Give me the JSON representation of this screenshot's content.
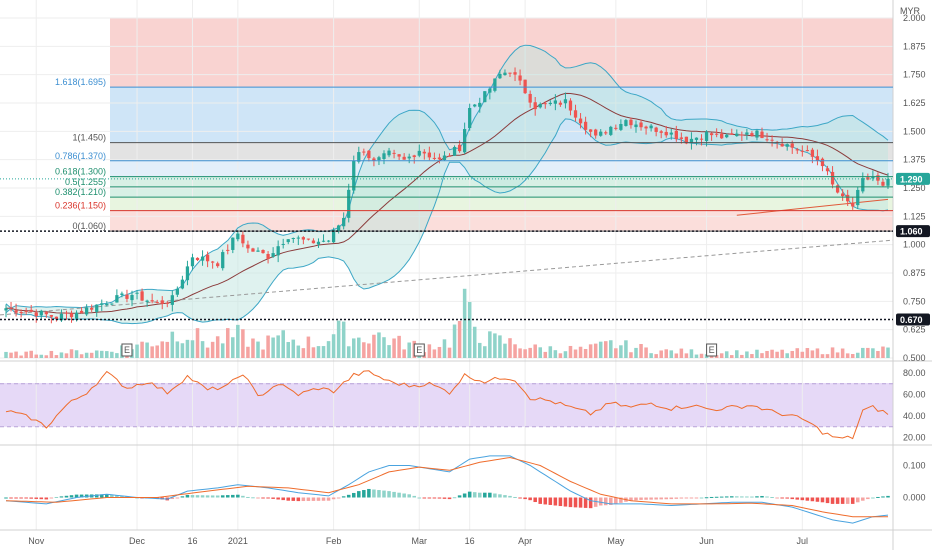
{
  "currency": "MYR",
  "colors": {
    "up": "#26a69a",
    "down": "#ef5350",
    "up_vol": "#8fd3c9",
    "down_vol": "#f5a3a1",
    "bb_line": "#3da7c6",
    "bb_fill": "#bfe6df",
    "ma": "#8b3c3c",
    "trend_red": "#e05a3a",
    "rsi": "#ef6c2c",
    "rsi_band": "#e6d9f7",
    "macd": "#4aa3df",
    "signal": "#ef6c2c",
    "hist_up": "#26a69a",
    "hist_down": "#ef5350",
    "grid": "#eeeeee",
    "last_price": "#26a69a",
    "level_tag": "#131722"
  },
  "chart_data": {
    "type": "candlestick",
    "price_axis": {
      "ylim": [
        0.5,
        2.0
      ],
      "ticks": [
        "2.000",
        "1.875",
        "1.750",
        "1.625",
        "1.500",
        "1.375",
        "1.250",
        "1.125",
        "1.000",
        "0.875",
        "0.750",
        "0.625",
        "0.500"
      ],
      "tick_values": [
        2.0,
        1.875,
        1.75,
        1.625,
        1.5,
        1.375,
        1.25,
        1.125,
        1.0,
        0.875,
        0.75,
        0.625,
        0.5
      ]
    },
    "time_axis": {
      "labels": [
        "Nov",
        "Dec",
        "16",
        "2021",
        "Feb",
        "Mar",
        "16",
        "Apr",
        "May",
        "Jun",
        "Jul"
      ],
      "label_bar_index": [
        6,
        26,
        37,
        46,
        65,
        82,
        92,
        103,
        121,
        139,
        158
      ]
    },
    "last_price": {
      "label": "1.290",
      "value": 1.29
    },
    "support_level": {
      "label": "1.060",
      "value": 1.06
    },
    "support_level_2": {
      "label": "0.670",
      "value": 0.67
    },
    "fibonacci": [
      {
        "label": "1.618(1.695)",
        "value": 1.695,
        "color": "#3d8fd1"
      },
      {
        "label": "1(1.450)",
        "value": 1.45,
        "color": "#555555"
      },
      {
        "label": "0.786(1.370)",
        "value": 1.37,
        "color": "#3d8fd1"
      },
      {
        "label": "0.618(1.300)",
        "value": 1.3,
        "color": "#1e8f6e"
      },
      {
        "label": "0.5(1.255)",
        "value": 1.255,
        "color": "#1e8f6e"
      },
      {
        "label": "0.382(1.210)",
        "value": 1.21,
        "color": "#1e8f6e"
      },
      {
        "label": "0.236(1.150)",
        "value": 1.15,
        "color": "#d9342b"
      },
      {
        "label": "0(1.060)",
        "value": 1.06,
        "color": "#555555"
      }
    ],
    "fib_zones": [
      {
        "from": 1.695,
        "to": 2.0,
        "color": "#f9d3d1"
      },
      {
        "from": 1.45,
        "to": 1.695,
        "color": "#cfe5f7"
      },
      {
        "from": 1.37,
        "to": 1.45,
        "color": "#e3e3e3"
      },
      {
        "from": 1.3,
        "to": 1.37,
        "color": "#e3effa"
      },
      {
        "from": 1.21,
        "to": 1.3,
        "color": "#d8f0e5"
      },
      {
        "from": 1.15,
        "to": 1.21,
        "color": "#e8f5e0"
      },
      {
        "from": 1.06,
        "to": 1.15,
        "color": "#fbdedb"
      }
    ],
    "close_anchors": [
      [
        0,
        0.72
      ],
      [
        6,
        0.7
      ],
      [
        10,
        0.68
      ],
      [
        14,
        0.7
      ],
      [
        20,
        0.75
      ],
      [
        25,
        0.78
      ],
      [
        30,
        0.74
      ],
      [
        33,
        0.76
      ],
      [
        37,
        0.95
      ],
      [
        42,
        0.92
      ],
      [
        46,
        1.05
      ],
      [
        48,
        0.98
      ],
      [
        52,
        0.95
      ],
      [
        56,
        1.04
      ],
      [
        60,
        1.01
      ],
      [
        64,
        1.02
      ],
      [
        67,
        1.12
      ],
      [
        69,
        1.38
      ],
      [
        71,
        1.42
      ],
      [
        73,
        1.36
      ],
      [
        76,
        1.4
      ],
      [
        79,
        1.37
      ],
      [
        82,
        1.42
      ],
      [
        86,
        1.37
      ],
      [
        90,
        1.43
      ],
      [
        92,
        1.6
      ],
      [
        95,
        1.66
      ],
      [
        98,
        1.75
      ],
      [
        100,
        1.77
      ],
      [
        102,
        1.71
      ],
      [
        105,
        1.61
      ],
      [
        108,
        1.62
      ],
      [
        111,
        1.63
      ],
      [
        114,
        1.55
      ],
      [
        117,
        1.47
      ],
      [
        120,
        1.52
      ],
      [
        123,
        1.55
      ],
      [
        127,
        1.52
      ],
      [
        131,
        1.5
      ],
      [
        135,
        1.46
      ],
      [
        139,
        1.49
      ],
      [
        143,
        1.47
      ],
      [
        147,
        1.5
      ],
      [
        151,
        1.48
      ],
      [
        155,
        1.44
      ],
      [
        159,
        1.4
      ],
      [
        162,
        1.36
      ],
      [
        164,
        1.26
      ],
      [
        166,
        1.2
      ],
      [
        168,
        1.17
      ],
      [
        170,
        1.28
      ],
      [
        172,
        1.3
      ],
      [
        174,
        1.25
      ],
      [
        175,
        1.29
      ]
    ],
    "volume_anchors": [
      [
        0,
        0.15
      ],
      [
        20,
        0.25
      ],
      [
        30,
        0.6
      ],
      [
        35,
        1.0
      ],
      [
        40,
        0.55
      ],
      [
        46,
        0.8
      ],
      [
        50,
        0.5
      ],
      [
        55,
        0.7
      ],
      [
        62,
        0.5
      ],
      [
        66,
        0.95
      ],
      [
        70,
        0.7
      ],
      [
        73,
        0.85
      ],
      [
        78,
        0.55
      ],
      [
        83,
        0.4
      ],
      [
        88,
        0.6
      ],
      [
        91,
        1.7
      ],
      [
        95,
        0.7
      ],
      [
        100,
        0.55
      ],
      [
        105,
        0.35
      ],
      [
        115,
        0.3
      ],
      [
        120,
        0.5
      ],
      [
        130,
        0.25
      ],
      [
        140,
        0.2
      ],
      [
        150,
        0.2
      ],
      [
        160,
        0.25
      ],
      [
        175,
        0.3
      ]
    ],
    "rsi": {
      "ticks": [
        "80.00",
        "60.00",
        "40.00",
        "20.00"
      ],
      "tick_values": [
        80,
        60,
        40,
        20
      ],
      "band": [
        30,
        70
      ],
      "anchors": [
        [
          0,
          45
        ],
        [
          5,
          38
        ],
        [
          8,
          30
        ],
        [
          12,
          50
        ],
        [
          16,
          62
        ],
        [
          20,
          80
        ],
        [
          24,
          66
        ],
        [
          28,
          72
        ],
        [
          32,
          62
        ],
        [
          36,
          77
        ],
        [
          40,
          64
        ],
        [
          44,
          68
        ],
        [
          47,
          80
        ],
        [
          50,
          58
        ],
        [
          54,
          70
        ],
        [
          58,
          60
        ],
        [
          62,
          66
        ],
        [
          65,
          63
        ],
        [
          69,
          78
        ],
        [
          72,
          81
        ],
        [
          76,
          72
        ],
        [
          80,
          68
        ],
        [
          84,
          70
        ],
        [
          88,
          62
        ],
        [
          91,
          78
        ],
        [
          95,
          72
        ],
        [
          99,
          76
        ],
        [
          101,
          74
        ],
        [
          104,
          57
        ],
        [
          108,
          54
        ],
        [
          112,
          48
        ],
        [
          116,
          42
        ],
        [
          120,
          52
        ],
        [
          124,
          48
        ],
        [
          128,
          52
        ],
        [
          132,
          47
        ],
        [
          136,
          50
        ],
        [
          140,
          46
        ],
        [
          144,
          48
        ],
        [
          148,
          50
        ],
        [
          152,
          44
        ],
        [
          156,
          40
        ],
        [
          159,
          35
        ],
        [
          162,
          25
        ],
        [
          165,
          19
        ],
        [
          168,
          20
        ],
        [
          170,
          45
        ],
        [
          172,
          48
        ],
        [
          174,
          44
        ],
        [
          175,
          42
        ]
      ]
    },
    "macd": {
      "ticks": [
        "0.100",
        "0.000"
      ],
      "tick_values": [
        0.1,
        0.0
      ],
      "ylim": [
        -0.09,
        0.16
      ],
      "macd_anchors": [
        [
          0,
          -0.01
        ],
        [
          8,
          -0.02
        ],
        [
          14,
          0.0
        ],
        [
          20,
          0.01
        ],
        [
          26,
          0.0
        ],
        [
          32,
          -0.005
        ],
        [
          36,
          0.02
        ],
        [
          42,
          0.03
        ],
        [
          46,
          0.04
        ],
        [
          52,
          0.03
        ],
        [
          58,
          0.015
        ],
        [
          64,
          0.005
        ],
        [
          68,
          0.04
        ],
        [
          72,
          0.08
        ],
        [
          76,
          0.1
        ],
        [
          80,
          0.1
        ],
        [
          84,
          0.09
        ],
        [
          88,
          0.08
        ],
        [
          92,
          0.12
        ],
        [
          96,
          0.13
        ],
        [
          100,
          0.13
        ],
        [
          104,
          0.1
        ],
        [
          108,
          0.06
        ],
        [
          112,
          0.02
        ],
        [
          116,
          -0.01
        ],
        [
          120,
          -0.02
        ],
        [
          126,
          -0.02
        ],
        [
          132,
          -0.025
        ],
        [
          138,
          -0.02
        ],
        [
          144,
          -0.015
        ],
        [
          150,
          -0.015
        ],
        [
          156,
          -0.03
        ],
        [
          160,
          -0.05
        ],
        [
          164,
          -0.07
        ],
        [
          168,
          -0.08
        ],
        [
          172,
          -0.06
        ],
        [
          175,
          -0.055
        ]
      ],
      "signal_anchors": [
        [
          0,
          -0.01
        ],
        [
          10,
          -0.015
        ],
        [
          20,
          0.0
        ],
        [
          30,
          0.0
        ],
        [
          40,
          0.02
        ],
        [
          48,
          0.035
        ],
        [
          56,
          0.03
        ],
        [
          64,
          0.015
        ],
        [
          70,
          0.04
        ],
        [
          76,
          0.08
        ],
        [
          82,
          0.095
        ],
        [
          88,
          0.085
        ],
        [
          94,
          0.11
        ],
        [
          100,
          0.125
        ],
        [
          106,
          0.1
        ],
        [
          112,
          0.05
        ],
        [
          118,
          0.01
        ],
        [
          124,
          -0.01
        ],
        [
          132,
          -0.02
        ],
        [
          140,
          -0.02
        ],
        [
          148,
          -0.018
        ],
        [
          156,
          -0.025
        ],
        [
          162,
          -0.045
        ],
        [
          168,
          -0.06
        ],
        [
          175,
          -0.06
        ]
      ]
    },
    "earnings_markers": [
      {
        "label": "E",
        "bar": 24
      },
      {
        "label": "E",
        "bar": 82
      },
      {
        "label": "E",
        "bar": 140
      }
    ]
  }
}
